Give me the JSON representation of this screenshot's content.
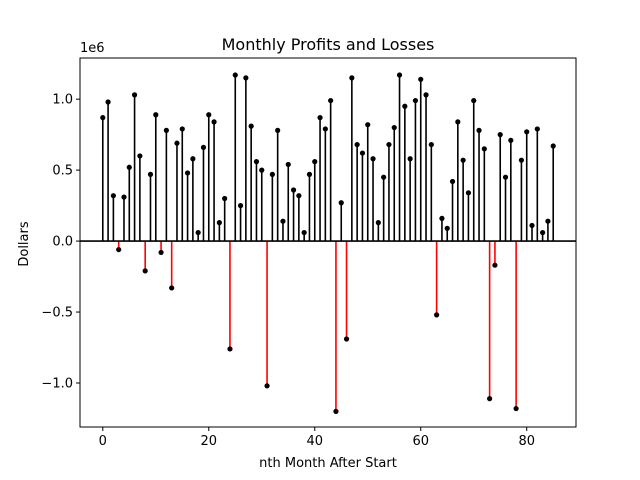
{
  "chart_data": {
    "type": "stem",
    "title": "Monthly Profits and Losses",
    "xlabel": "nth Month After Start",
    "ylabel": "Dollars",
    "y_offset_label": "1e6",
    "xlim": [
      -4.3,
      89.3
    ],
    "ylim": [
      -1.31,
      1.29
    ],
    "y_scale_factor": 1000000,
    "xticks": [
      0,
      20,
      40,
      60,
      80
    ],
    "xtick_labels": [
      "0",
      "20",
      "40",
      "60",
      "80"
    ],
    "yticks": [
      -1.0,
      -0.5,
      0.0,
      0.5,
      1.0
    ],
    "ytick_labels": [
      "−1.0",
      "−0.5",
      "0.0",
      "0.5",
      "1.0"
    ],
    "grid": false,
    "colors": {
      "profit": "#000000",
      "loss": "#ff0000",
      "marker": "#000000",
      "baseline": "#000000"
    },
    "x": [
      0,
      1,
      2,
      3,
      4,
      5,
      6,
      7,
      8,
      9,
      10,
      11,
      12,
      13,
      14,
      15,
      16,
      17,
      18,
      19,
      20,
      21,
      22,
      23,
      24,
      25,
      26,
      27,
      28,
      29,
      30,
      31,
      32,
      33,
      34,
      35,
      36,
      37,
      38,
      39,
      40,
      41,
      42,
      43,
      44,
      45,
      46,
      47,
      48,
      49,
      50,
      51,
      52,
      53,
      54,
      55,
      56,
      57,
      58,
      59,
      60,
      61,
      62,
      63,
      64,
      65,
      66,
      67,
      68,
      69,
      70,
      71,
      72,
      73,
      74,
      75,
      76,
      77,
      78,
      79,
      80,
      81,
      82,
      83,
      84,
      85
    ],
    "values": [
      0.87,
      0.98,
      0.32,
      -0.06,
      0.31,
      0.52,
      1.03,
      0.6,
      -0.21,
      0.47,
      0.89,
      -0.08,
      0.78,
      -0.33,
      0.69,
      0.79,
      0.48,
      0.58,
      0.06,
      0.66,
      0.89,
      0.84,
      0.13,
      0.3,
      -0.76,
      1.17,
      0.25,
      1.15,
      0.81,
      0.56,
      0.5,
      -1.02,
      0.47,
      0.78,
      0.14,
      0.54,
      0.36,
      0.32,
      0.06,
      0.47,
      0.56,
      0.87,
      0.79,
      0.99,
      -1.2,
      0.27,
      -0.69,
      1.15,
      0.68,
      0.62,
      0.82,
      0.58,
      0.13,
      0.45,
      0.68,
      0.8,
      1.17,
      0.95,
      0.58,
      0.99,
      1.14,
      1.03,
      0.68,
      -0.52,
      0.16,
      0.09,
      0.42,
      0.84,
      0.57,
      0.34,
      0.99,
      0.78,
      0.65,
      -1.11,
      -0.17,
      0.75,
      0.45,
      0.71,
      -1.18,
      0.57,
      0.77,
      0.11,
      0.79,
      0.06,
      0.14,
      0.67
    ]
  }
}
